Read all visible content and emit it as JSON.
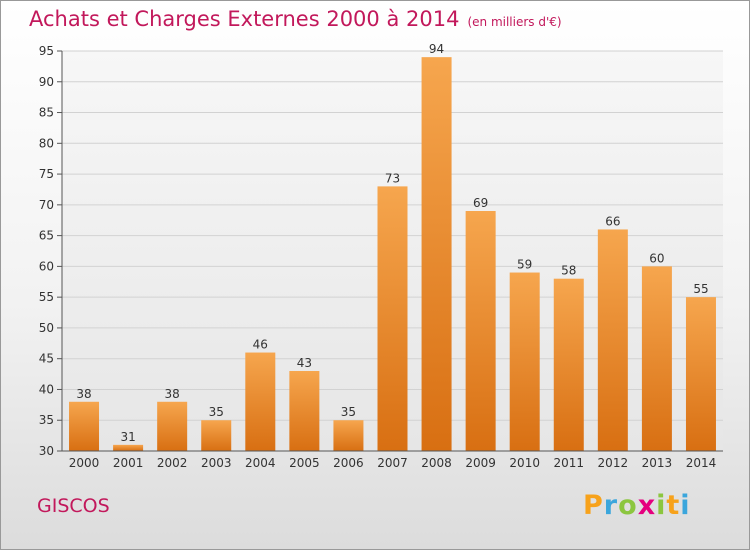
{
  "title": "Achats et Charges Externes 2000 à 2014",
  "subtitle": "(en milliers d'€)",
  "commune": "GISCOS",
  "logo": {
    "letters": [
      "P",
      "r",
      "o",
      "x",
      "i",
      "t",
      "i"
    ],
    "colors": [
      "#f7a21b",
      "#3ba6dc",
      "#8cc63f",
      "#e5007e",
      "#8cc63f",
      "#f7a21b",
      "#3ba6dc"
    ]
  },
  "chart_data": {
    "type": "bar",
    "categories": [
      "2000",
      "2001",
      "2002",
      "2003",
      "2004",
      "2005",
      "2006",
      "2007",
      "2008",
      "2009",
      "2010",
      "2011",
      "2012",
      "2013",
      "2014"
    ],
    "values": [
      38,
      31,
      38,
      35,
      46,
      43,
      35,
      73,
      94,
      69,
      59,
      58,
      66,
      60,
      55
    ],
    "ylim": [
      30,
      95
    ],
    "yticks": [
      30,
      35,
      40,
      45,
      50,
      55,
      60,
      65,
      70,
      75,
      80,
      85,
      90,
      95
    ],
    "grid": true,
    "bar_color": "#f0922e"
  }
}
